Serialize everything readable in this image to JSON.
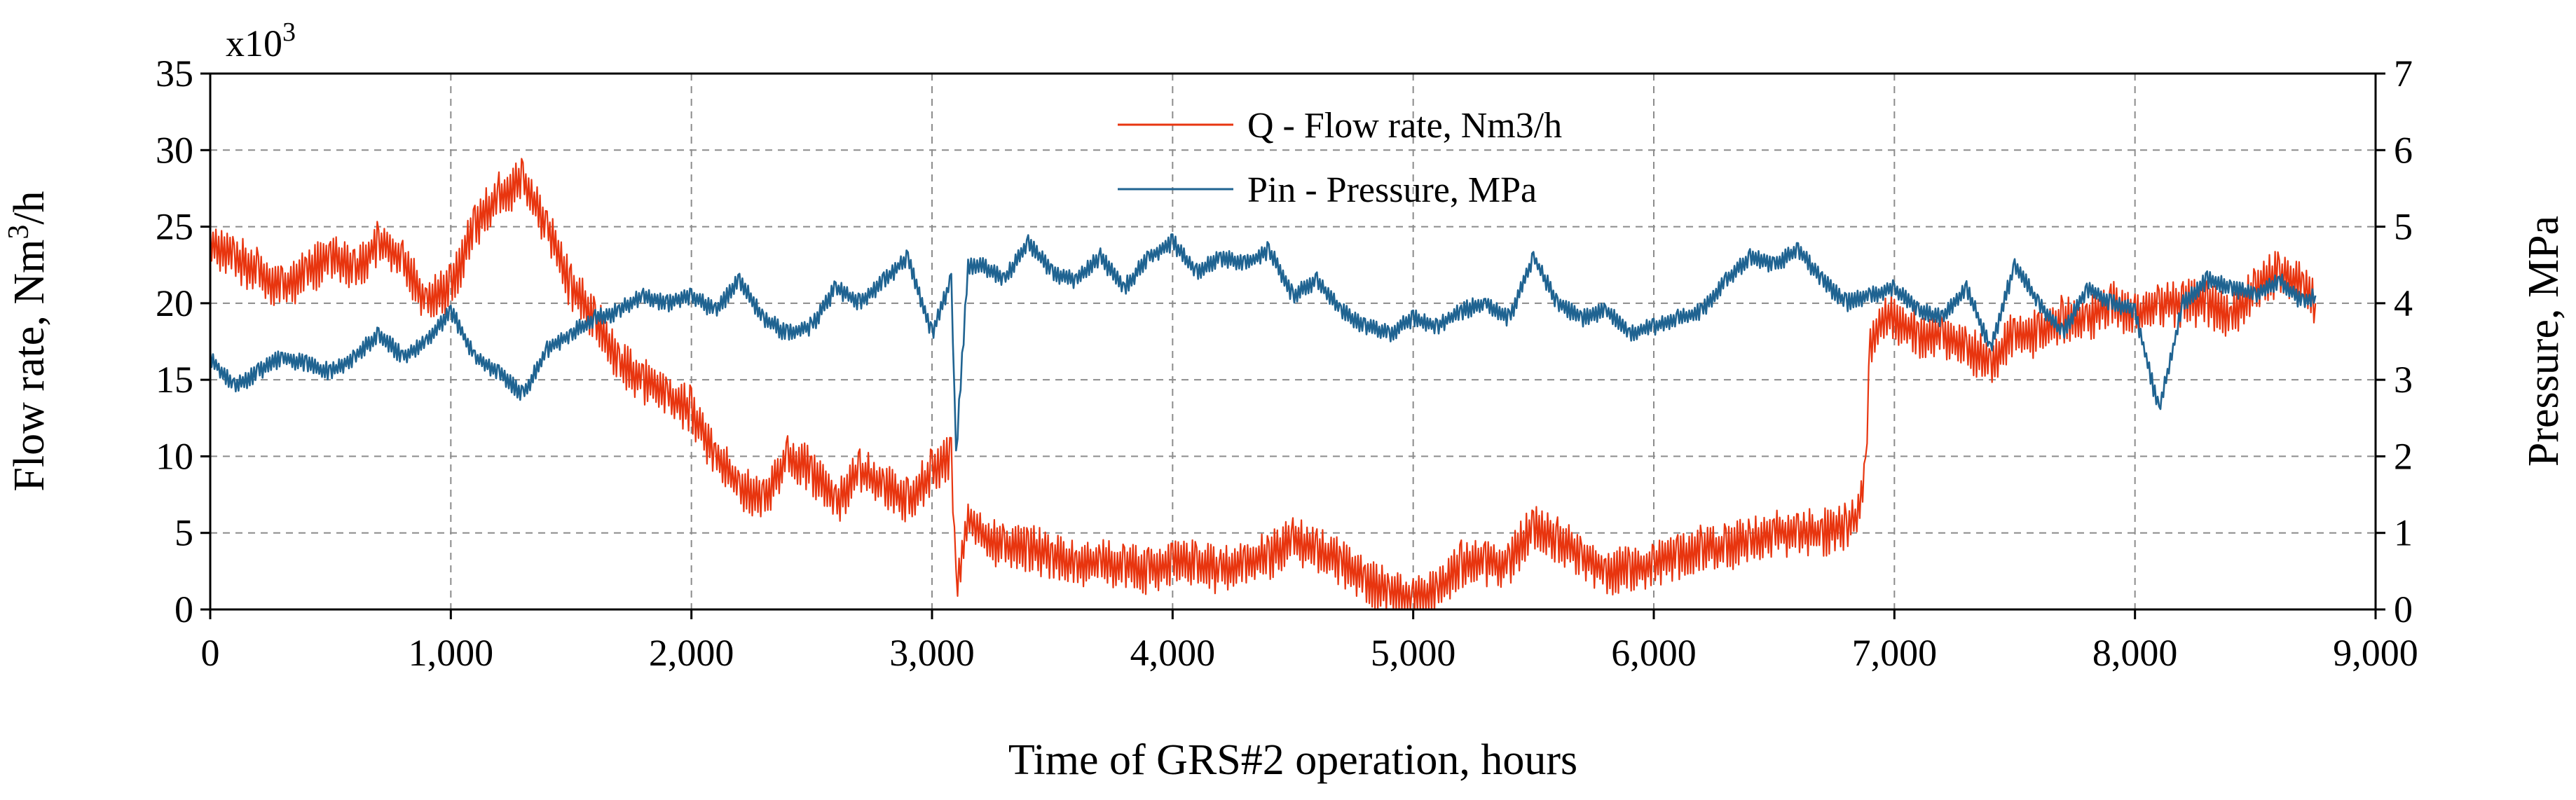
{
  "chart_data": {
    "type": "line",
    "title": "",
    "xlabel": "Time of GRS#2 operation, hours",
    "ylabel_left": {
      "pre": "Flow rate, Nm",
      "sup": "3",
      "post": "/h"
    },
    "ylabel_right": "Pressure, MPa",
    "y_multiplier": {
      "base": "x10",
      "exp": "3"
    },
    "xlim": [
      0,
      9000
    ],
    "ylim_left": [
      0,
      35
    ],
    "ylim_right": [
      0,
      7
    ],
    "x_ticks": [
      0,
      1000,
      2000,
      3000,
      4000,
      5000,
      6000,
      7000,
      8000,
      9000
    ],
    "x_tick_labels": [
      "0",
      "1,000",
      "2,000",
      "3,000",
      "4,000",
      "5,000",
      "6,000",
      "7,000",
      "8,000",
      "9,000"
    ],
    "y_left_ticks": [
      0,
      5,
      10,
      15,
      20,
      25,
      30,
      35
    ],
    "y_left_tick_labels": [
      "0",
      "5",
      "10",
      "15",
      "20",
      "25",
      "30",
      "35"
    ],
    "y_right_ticks": [
      0,
      1,
      2,
      3,
      4,
      5,
      6,
      7
    ],
    "y_right_tick_labels": [
      "0",
      "1",
      "2",
      "3",
      "4",
      "5",
      "6",
      "7"
    ],
    "grid": true,
    "legend_position": "top-center",
    "series": [
      {
        "name": "Q - Flow rate, Nm3/h",
        "color": "#e8350f",
        "axis": "left",
        "units": "x10^3 Nm3/h",
        "x": [
          0,
          100,
          200,
          300,
          400,
          500,
          600,
          700,
          800,
          900,
          1000,
          1100,
          1200,
          1300,
          1400,
          1500,
          1600,
          1700,
          1800,
          1900,
          2000,
          2100,
          2200,
          2300,
          2400,
          2500,
          2600,
          2700,
          2800,
          2900,
          3000,
          3080,
          3100,
          3150,
          3200,
          3300,
          3400,
          3500,
          3600,
          3700,
          3800,
          3900,
          4000,
          4100,
          4200,
          4300,
          4400,
          4500,
          4600,
          4700,
          4800,
          4900,
          5000,
          5100,
          5200,
          5300,
          5400,
          5500,
          5600,
          5700,
          5800,
          5900,
          6000,
          6100,
          6200,
          6300,
          6400,
          6500,
          6600,
          6700,
          6800,
          6850,
          6880,
          6900,
          6950,
          7000,
          7100,
          7200,
          7300,
          7400,
          7500,
          7600,
          7700,
          7800,
          7900,
          8000,
          8100,
          8200,
          8300,
          8400,
          8500,
          8600,
          8700,
          8750
        ],
        "values": [
          24,
          23,
          22,
          21,
          22,
          23,
          22,
          24,
          23,
          20,
          21,
          25,
          27,
          28,
          25,
          21,
          19,
          16,
          15,
          14,
          13,
          10,
          8,
          7,
          10,
          9,
          7,
          9,
          8,
          7,
          9,
          10,
          1,
          6,
          5,
          4,
          4,
          3.5,
          3,
          3,
          3,
          2.5,
          3,
          3,
          2.5,
          3,
          3.5,
          4.5,
          4,
          3,
          2,
          1,
          0.5,
          1,
          3,
          3,
          3,
          5.5,
          4.5,
          3.5,
          2.5,
          2.5,
          3,
          3.5,
          4,
          4,
          4.5,
          5,
          5,
          5,
          5.5,
          6,
          9,
          17,
          19,
          19,
          18,
          18,
          17,
          16,
          18,
          18,
          19,
          19,
          20,
          19,
          20,
          20,
          20,
          19,
          21,
          22,
          21,
          20
        ]
      },
      {
        "name": "Pin - Pressure, MPa",
        "color": "#1f6391",
        "axis": "right",
        "units": "MPa",
        "x": [
          0,
          100,
          200,
          300,
          400,
          500,
          600,
          700,
          800,
          900,
          1000,
          1100,
          1200,
          1300,
          1400,
          1500,
          1600,
          1700,
          1800,
          1900,
          2000,
          2100,
          2200,
          2300,
          2400,
          2500,
          2600,
          2700,
          2800,
          2900,
          3000,
          3080,
          3100,
          3150,
          3200,
          3300,
          3400,
          3500,
          3600,
          3700,
          3800,
          3900,
          4000,
          4100,
          4200,
          4300,
          4400,
          4500,
          4600,
          4700,
          4800,
          4900,
          5000,
          5100,
          5200,
          5300,
          5400,
          5500,
          5600,
          5700,
          5800,
          5900,
          6000,
          6100,
          6200,
          6300,
          6400,
          6500,
          6600,
          6700,
          6800,
          6900,
          7000,
          7100,
          7200,
          7300,
          7400,
          7500,
          7600,
          7700,
          7800,
          7900,
          8000,
          8100,
          8200,
          8300,
          8400,
          8500,
          8600,
          8700,
          8750
        ],
        "values": [
          3.3,
          2.9,
          3.1,
          3.3,
          3.2,
          3.1,
          3.3,
          3.6,
          3.3,
          3.5,
          3.9,
          3.3,
          3.1,
          2.8,
          3.4,
          3.6,
          3.8,
          3.9,
          4.1,
          4.0,
          4.1,
          3.9,
          4.3,
          3.8,
          3.6,
          3.7,
          4.2,
          4.0,
          4.3,
          4.6,
          3.6,
          4.3,
          2.0,
          4.5,
          4.5,
          4.3,
          4.8,
          4.4,
          4.3,
          4.6,
          4.2,
          4.6,
          4.8,
          4.4,
          4.6,
          4.5,
          4.7,
          4.1,
          4.3,
          3.9,
          3.7,
          3.6,
          3.8,
          3.7,
          3.9,
          4.0,
          3.8,
          4.6,
          4.0,
          3.8,
          3.9,
          3.6,
          3.7,
          3.8,
          3.9,
          4.3,
          4.6,
          4.5,
          4.7,
          4.3,
          4.0,
          4.1,
          4.2,
          3.9,
          3.8,
          4.2,
          3.4,
          4.5,
          4.0,
          3.6,
          4.2,
          4.0,
          3.9,
          2.6,
          4.0,
          4.3,
          4.2,
          4.1,
          4.3,
          4.0,
          4.1
        ]
      }
    ]
  }
}
